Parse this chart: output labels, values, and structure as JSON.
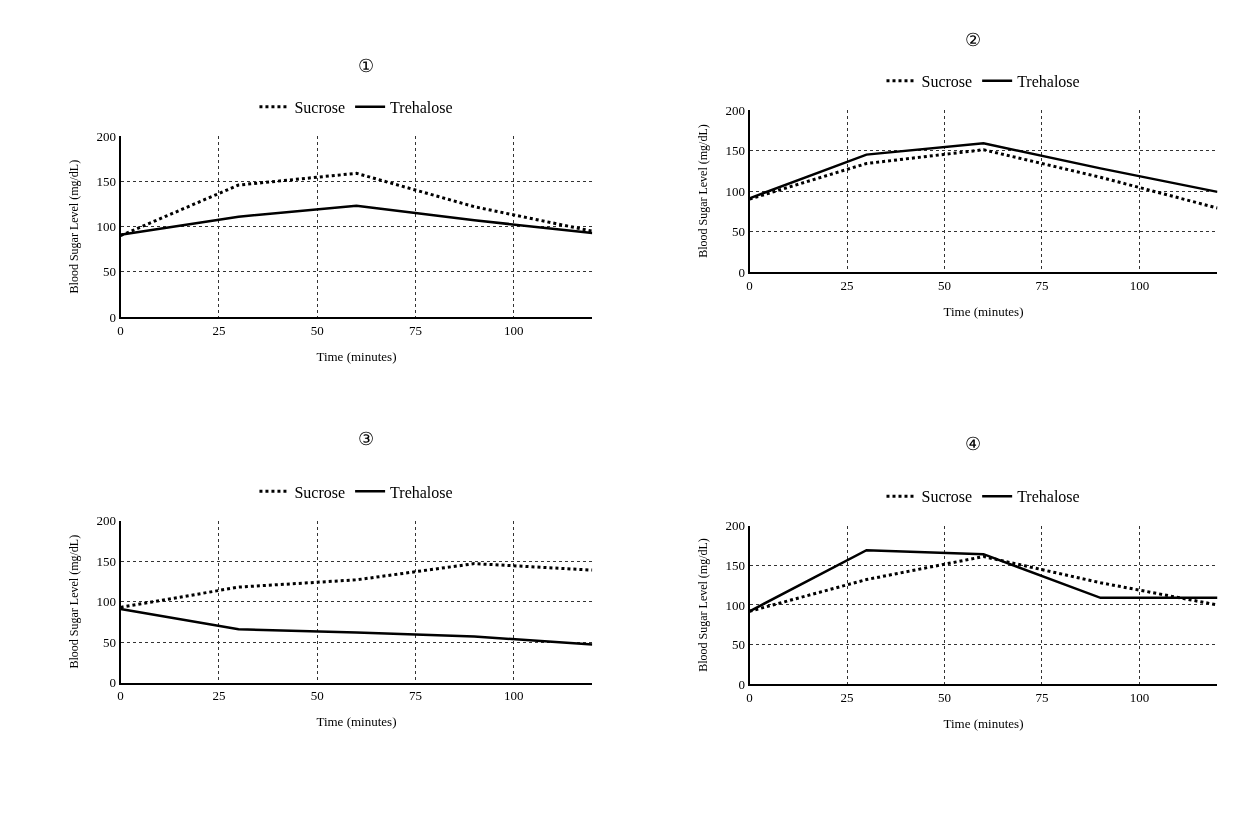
{
  "chart_data": [
    {
      "type": "line",
      "title": "①",
      "xlabel": "Time (minutes)",
      "ylabel": "Blood Sugar Level (mg/dL)",
      "x": [
        0,
        30,
        60,
        90,
        120
      ],
      "xlim": [
        0,
        120
      ],
      "xticks": [
        0,
        25,
        50,
        75,
        100
      ],
      "ylim": [
        0,
        200
      ],
      "yticks": [
        0,
        50,
        100,
        150,
        200
      ],
      "grid": true,
      "legend": "top",
      "series": [
        {
          "name": "Sucrose",
          "color": "#000000",
          "line_style": "dotted",
          "values": [
            90,
            146,
            159,
            122,
            95
          ]
        },
        {
          "name": "Trehalose",
          "color": "#000000",
          "line_style": "solid",
          "values": [
            91,
            111,
            123,
            107,
            93
          ]
        }
      ]
    },
    {
      "type": "line",
      "title": "②",
      "xlabel": "Time (minutes)",
      "ylabel": "Blood Sugar Level (mg/dL)",
      "x": [
        0,
        30,
        60,
        90,
        120
      ],
      "xlim": [
        0,
        120
      ],
      "xticks": [
        0,
        25,
        50,
        75,
        100
      ],
      "ylim": [
        0,
        200
      ],
      "yticks": [
        0,
        50,
        100,
        150,
        200
      ],
      "grid": true,
      "legend": "top",
      "series": [
        {
          "name": "Sucrose",
          "color": "#000000",
          "line_style": "dotted",
          "values": [
            90,
            134,
            151,
            117,
            79
          ]
        },
        {
          "name": "Trehalose",
          "color": "#000000",
          "line_style": "solid",
          "values": [
            91,
            145,
            159,
            128,
            99
          ]
        }
      ]
    },
    {
      "type": "line",
      "title": "③",
      "xlabel": "Time (minutes)",
      "ylabel": "Blood Sugar Level (mg/dL)",
      "x": [
        0,
        30,
        60,
        90,
        120
      ],
      "xlim": [
        0,
        120
      ],
      "xticks": [
        0,
        25,
        50,
        75,
        100
      ],
      "ylim": [
        0,
        200
      ],
      "yticks": [
        0,
        50,
        100,
        150,
        200
      ],
      "grid": true,
      "legend": "top",
      "series": [
        {
          "name": "Sucrose",
          "color": "#000000",
          "line_style": "dotted",
          "values": [
            93,
            118,
            127,
            147,
            139
          ]
        },
        {
          "name": "Trehalose",
          "color": "#000000",
          "line_style": "solid",
          "values": [
            91,
            66,
            62,
            57,
            47
          ]
        }
      ]
    },
    {
      "type": "line",
      "title": "④",
      "xlabel": "Time (minutes)",
      "ylabel": "Blood Sugar Level (mg/dL)",
      "x": [
        0,
        30,
        60,
        90,
        120
      ],
      "xlim": [
        0,
        120
      ],
      "xticks": [
        0,
        25,
        50,
        75,
        100
      ],
      "ylim": [
        0,
        200
      ],
      "yticks": [
        0,
        50,
        100,
        150,
        200
      ],
      "grid": true,
      "legend": "top",
      "series": [
        {
          "name": "Sucrose",
          "color": "#000000",
          "line_style": "dotted",
          "values": [
            92,
            132,
            161,
            128,
            100
          ]
        },
        {
          "name": "Trehalose",
          "color": "#000000",
          "line_style": "solid",
          "values": [
            92,
            169,
            164,
            109,
            109
          ]
        }
      ]
    }
  ]
}
